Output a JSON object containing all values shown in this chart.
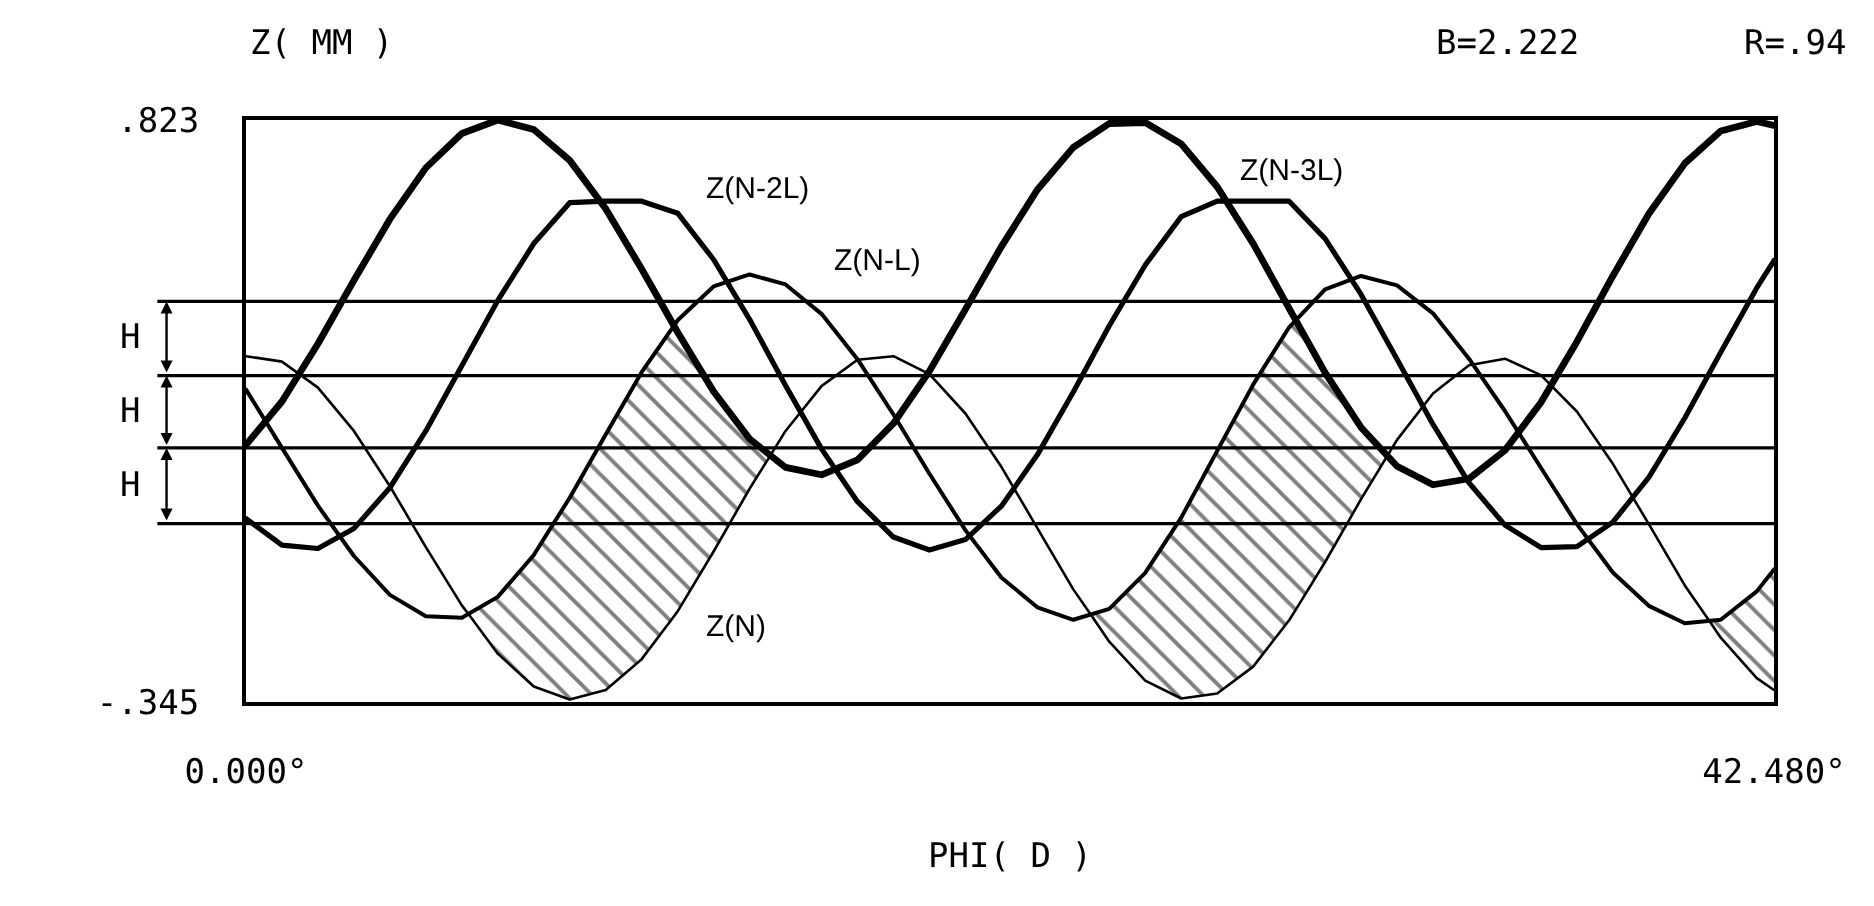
{
  "chart_data": {
    "type": "line",
    "xlabel": "PHI( D )",
    "ylabel": "Z( MM )",
    "annotations": [
      "B=2.222",
      "R=.94",
      "H",
      "H",
      "H"
    ],
    "xlim": [
      0,
      42.48
    ],
    "xticks": [
      {
        "value": 0,
        "label": "0.000°"
      },
      {
        "value": 42.48,
        "label": "42.480°"
      }
    ],
    "ylim": [
      -0.345,
      0.823
    ],
    "yticks": [
      {
        "value": 0.823,
        "label": ".823"
      },
      {
        "value": -0.345,
        "label": "-.345"
      }
    ],
    "line_style": "solid",
    "x": [
      0,
      1,
      2,
      3,
      4,
      5,
      6,
      7,
      8,
      9,
      10,
      11,
      12,
      13,
      14,
      15,
      16,
      17,
      18,
      19,
      20,
      21,
      22,
      23,
      24,
      25,
      26,
      27,
      28,
      29,
      30,
      31,
      32,
      33,
      34,
      35,
      36,
      37,
      38,
      39,
      40,
      41,
      42,
      42.48
    ],
    "ref_lines": [
      {
        "axis": "y",
        "value": 0.459
      },
      {
        "axis": "y",
        "value": 0.31
      },
      {
        "axis": "y",
        "value": 0.165
      },
      {
        "axis": "y",
        "value": 0.013
      }
    ],
    "series": [
      {
        "name": "Z(N-3L)",
        "color": "#000000",
        "values": [
          0.171,
          0.258,
          0.374,
          0.501,
          0.624,
          0.727,
          0.796,
          0.823,
          0.804,
          0.742,
          0.645,
          0.524,
          0.397,
          0.278,
          0.183,
          0.126,
          0.111,
          0.141,
          0.214,
          0.319,
          0.443,
          0.569,
          0.683,
          0.768,
          0.816,
          0.818,
          0.775,
          0.689,
          0.575,
          0.445,
          0.316,
          0.206,
          0.128,
          0.091,
          0.103,
          0.16,
          0.256,
          0.378,
          0.51,
          0.635,
          0.736,
          0.801,
          0.82,
          0.812
        ]
      },
      {
        "name": "Z(N-2L)",
        "color": "#000000",
        "values": [
          0.023,
          -0.03,
          -0.037,
          0.003,
          0.085,
          0.199,
          0.33,
          0.461,
          0.575,
          0.657,
          0.66,
          0.66,
          0.636,
          0.543,
          0.423,
          0.29,
          0.163,
          0.057,
          -0.014,
          -0.04,
          -0.019,
          0.048,
          0.151,
          0.277,
          0.41,
          0.532,
          0.629,
          0.66,
          0.66,
          0.66,
          0.585,
          0.473,
          0.343,
          0.212,
          0.095,
          0.01,
          -0.035,
          -0.033,
          0.016,
          0.106,
          0.225,
          0.357,
          0.486,
          0.541
        ]
      },
      {
        "name": "Z(N-L)",
        "color": "#000000",
        "values": [
          0.282,
          0.165,
          0.049,
          -0.052,
          -0.13,
          -0.173,
          -0.176,
          -0.134,
          -0.05,
          0.065,
          0.192,
          0.317,
          0.421,
          0.489,
          0.513,
          0.493,
          0.434,
          0.343,
          0.232,
          0.113,
          0.0,
          -0.095,
          -0.155,
          -0.18,
          -0.158,
          -0.086,
          0.025,
          0.159,
          0.292,
          0.407,
          0.483,
          0.51,
          0.491,
          0.435,
          0.344,
          0.239,
          0.125,
          0.012,
          -0.085,
          -0.152,
          -0.187,
          -0.18,
          -0.123,
          -0.079
        ]
      },
      {
        "name": "Z(N)",
        "color": "#000000",
        "x": [
          0,
          1,
          2,
          3,
          4,
          5,
          6,
          6.18,
          7,
          8,
          9,
          10,
          11,
          11.9,
          12,
          13,
          14,
          14.58,
          15,
          16,
          17,
          18,
          19,
          20,
          21,
          22,
          23,
          23.48,
          24,
          25,
          26,
          27,
          28,
          29,
          29.19,
          30,
          31,
          31.73,
          32,
          33,
          34,
          35,
          36,
          37,
          38,
          39,
          40,
          40.68,
          41,
          42,
          42.48
        ],
        "values": [
          0.349,
          0.338,
          0.286,
          0.199,
          0.088,
          -0.034,
          -0.151,
          -0.168,
          -0.248,
          -0.314,
          -0.34,
          -0.321,
          -0.259,
          -0.173,
          -0.163,
          -0.043,
          0.083,
          0.15,
          0.199,
          0.289,
          0.342,
          0.349,
          0.313,
          0.234,
          0.127,
          0.004,
          -0.119,
          -0.169,
          -0.224,
          -0.302,
          -0.338,
          -0.328,
          -0.274,
          -0.181,
          -0.159,
          -0.064,
          0.062,
          0.149,
          0.181,
          0.274,
          0.331,
          0.344,
          0.311,
          0.238,
          0.133,
          0.012,
          -0.111,
          -0.182,
          -0.216,
          -0.297,
          -0.321
        ],
        "lower": [
          null,
          null,
          null,
          null,
          null,
          null,
          null,
          -0.168,
          -0.248,
          -0.314,
          -0.34,
          -0.321,
          -0.259,
          -0.173,
          -0.163,
          -0.043,
          0.083,
          0.15,
          null,
          null,
          null,
          null,
          null,
          null,
          null,
          null,
          null,
          -0.169,
          -0.224,
          -0.302,
          -0.338,
          -0.328,
          -0.274,
          -0.181,
          -0.159,
          -0.064,
          0.062,
          0.149,
          null,
          null,
          null,
          null,
          null,
          null,
          null,
          null,
          null,
          -0.182,
          -0.216,
          -0.297,
          -0.321
        ],
        "upper": [
          null,
          null,
          null,
          null,
          null,
          null,
          null,
          -0.168,
          -0.134,
          -0.05,
          0.065,
          0.192,
          0.317,
          0.41,
          0.397,
          0.278,
          0.183,
          0.15,
          null,
          null,
          null,
          null,
          null,
          null,
          null,
          null,
          null,
          -0.169,
          -0.158,
          -0.086,
          0.025,
          0.159,
          0.292,
          0.407,
          0.421,
          0.316,
          0.206,
          0.149,
          null,
          null,
          null,
          null,
          null,
          null,
          null,
          null,
          null,
          -0.182,
          -0.18,
          -0.123,
          -0.079
        ]
      }
    ]
  }
}
